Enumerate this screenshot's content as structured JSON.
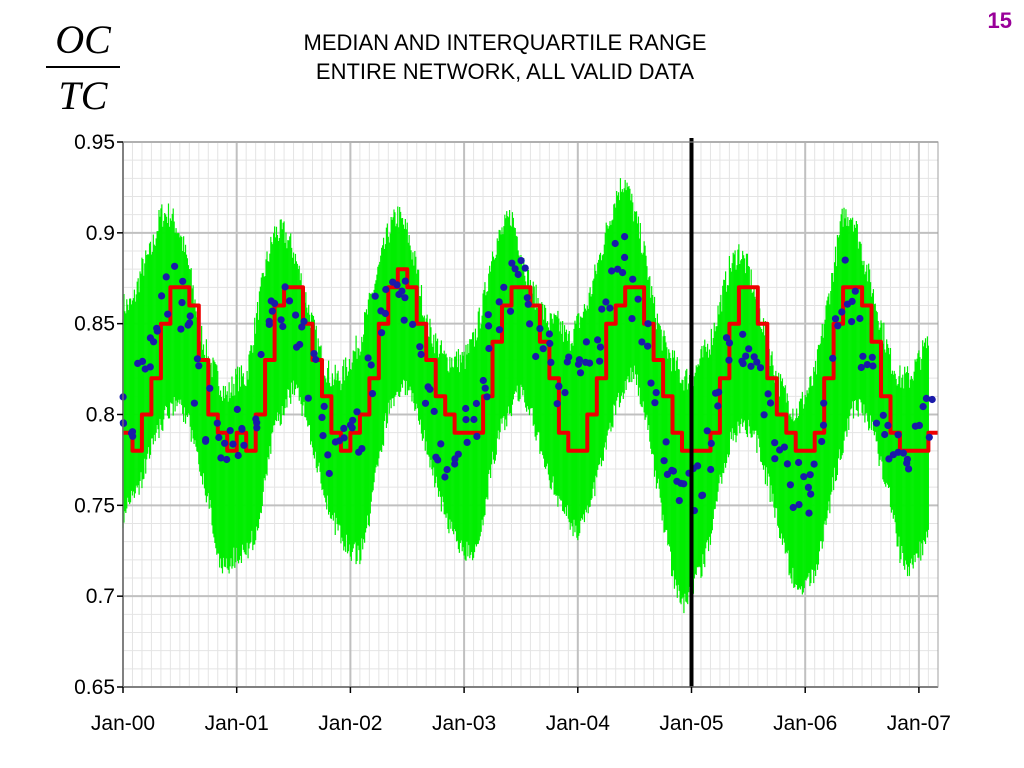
{
  "page_number": "15",
  "ratio_label": {
    "numerator": "OC",
    "denominator": "TC"
  },
  "colors": {
    "iqr_band": "#00ee00",
    "median_line": "#ee0000",
    "points": "#1a1aaa",
    "grid": "#c0c0c0",
    "marker_line": "#000000",
    "page_number": "#990099"
  },
  "chart_data": {
    "type": "line",
    "title": "MEDIAN AND INTERQUARTILE RANGE",
    "subtitle": "ENTIRE NETWORK, ALL VALID DATA",
    "xlabel": "",
    "ylabel": "",
    "ylim": [
      0.65,
      0.95
    ],
    "y_ticks": [
      "0.65",
      "0.7",
      "0.75",
      "0.8",
      "0.85",
      "0.9",
      "0.95"
    ],
    "x_ticks": [
      "Jan-00",
      "Jan-01",
      "Jan-02",
      "Jan-03",
      "Jan-04",
      "Jan-05",
      "Jan-06",
      "Jan-07"
    ],
    "x_range": [
      "2000-01",
      "2007-02"
    ],
    "grid": true,
    "vertical_marker": "2005-01",
    "series": [
      {
        "kind": "interquartile_range_band",
        "x": [
          "2000-01",
          "2000-02",
          "2000-03",
          "2000-04",
          "2000-05",
          "2000-06",
          "2000-07",
          "2000-08",
          "2000-09",
          "2000-10",
          "2000-11",
          "2000-12",
          "2001-01",
          "2001-02",
          "2001-03",
          "2001-04",
          "2001-05",
          "2001-06",
          "2001-07",
          "2001-08",
          "2001-09",
          "2001-10",
          "2001-11",
          "2001-12",
          "2002-01",
          "2002-02",
          "2002-03",
          "2002-04",
          "2002-05",
          "2002-06",
          "2002-07",
          "2002-08",
          "2002-09",
          "2002-10",
          "2002-11",
          "2002-12",
          "2003-01",
          "2003-02",
          "2003-03",
          "2003-04",
          "2003-05",
          "2003-06",
          "2003-07",
          "2003-08",
          "2003-09",
          "2003-10",
          "2003-11",
          "2003-12",
          "2004-01",
          "2004-02",
          "2004-03",
          "2004-04",
          "2004-05",
          "2004-06",
          "2004-07",
          "2004-08",
          "2004-09",
          "2004-10",
          "2004-11",
          "2004-12",
          "2005-01",
          "2005-02",
          "2005-03",
          "2005-04",
          "2005-05",
          "2005-06",
          "2005-07",
          "2005-08",
          "2005-09",
          "2005-10",
          "2005-11",
          "2005-12",
          "2006-01",
          "2006-02",
          "2006-03",
          "2006-04",
          "2006-05",
          "2006-06",
          "2006-07",
          "2006-08",
          "2006-09",
          "2006-10",
          "2006-11",
          "2006-12",
          "2007-01",
          "2007-02"
        ],
        "low": [
          0.75,
          0.76,
          0.77,
          0.79,
          0.8,
          0.81,
          0.81,
          0.8,
          0.78,
          0.76,
          0.73,
          0.72,
          0.73,
          0.73,
          0.74,
          0.77,
          0.8,
          0.81,
          0.82,
          0.81,
          0.79,
          0.77,
          0.75,
          0.74,
          0.73,
          0.73,
          0.75,
          0.78,
          0.81,
          0.82,
          0.82,
          0.81,
          0.79,
          0.77,
          0.75,
          0.74,
          0.73,
          0.73,
          0.75,
          0.78,
          0.8,
          0.81,
          0.82,
          0.81,
          0.79,
          0.77,
          0.76,
          0.75,
          0.74,
          0.75,
          0.77,
          0.79,
          0.81,
          0.82,
          0.83,
          0.81,
          0.78,
          0.75,
          0.72,
          0.7,
          0.71,
          0.72,
          0.74,
          0.77,
          0.79,
          0.8,
          0.8,
          0.79,
          0.77,
          0.75,
          0.73,
          0.71,
          0.71,
          0.72,
          0.74,
          0.77,
          0.79,
          0.81,
          0.81,
          0.8,
          0.78,
          0.76,
          0.73,
          0.72,
          0.73,
          0.74
        ],
        "high": [
          0.86,
          0.86,
          0.88,
          0.89,
          0.91,
          0.91,
          0.9,
          0.88,
          0.85,
          0.83,
          0.82,
          0.81,
          0.82,
          0.82,
          0.85,
          0.88,
          0.9,
          0.9,
          0.89,
          0.87,
          0.85,
          0.83,
          0.82,
          0.82,
          0.83,
          0.84,
          0.86,
          0.88,
          0.9,
          0.91,
          0.9,
          0.88,
          0.85,
          0.84,
          0.83,
          0.83,
          0.83,
          0.84,
          0.86,
          0.89,
          0.9,
          0.91,
          0.89,
          0.87,
          0.86,
          0.85,
          0.85,
          0.84,
          0.85,
          0.86,
          0.88,
          0.9,
          0.92,
          0.93,
          0.91,
          0.89,
          0.86,
          0.84,
          0.83,
          0.82,
          0.82,
          0.83,
          0.84,
          0.86,
          0.88,
          0.89,
          0.88,
          0.86,
          0.84,
          0.82,
          0.81,
          0.8,
          0.81,
          0.82,
          0.85,
          0.88,
          0.91,
          0.91,
          0.89,
          0.87,
          0.85,
          0.83,
          0.82,
          0.82,
          0.83,
          0.84
        ]
      },
      {
        "kind": "median_line",
        "x": [
          "2000-01",
          "2000-02",
          "2000-03",
          "2000-04",
          "2000-05",
          "2000-06",
          "2000-07",
          "2000-08",
          "2000-09",
          "2000-10",
          "2000-11",
          "2000-12",
          "2001-01",
          "2001-02",
          "2001-03",
          "2001-04",
          "2001-05",
          "2001-06",
          "2001-07",
          "2001-08",
          "2001-09",
          "2001-10",
          "2001-11",
          "2001-12",
          "2002-01",
          "2002-02",
          "2002-03",
          "2002-04",
          "2002-05",
          "2002-06",
          "2002-07",
          "2002-08",
          "2002-09",
          "2002-10",
          "2002-11",
          "2002-12",
          "2003-01",
          "2003-02",
          "2003-03",
          "2003-04",
          "2003-05",
          "2003-06",
          "2003-07",
          "2003-08",
          "2003-09",
          "2003-10",
          "2003-11",
          "2003-12",
          "2004-01",
          "2004-02",
          "2004-03",
          "2004-04",
          "2004-05",
          "2004-06",
          "2004-07",
          "2004-08",
          "2004-09",
          "2004-10",
          "2004-11",
          "2004-12",
          "2005-01",
          "2005-02",
          "2005-03",
          "2005-04",
          "2005-05",
          "2005-06",
          "2005-07",
          "2005-08",
          "2005-09",
          "2005-10",
          "2005-11",
          "2005-12",
          "2006-01",
          "2006-02",
          "2006-03",
          "2006-04",
          "2006-05",
          "2006-06",
          "2006-07",
          "2006-08",
          "2006-09",
          "2006-10",
          "2006-11",
          "2006-12",
          "2007-01",
          "2007-02"
        ],
        "y": [
          0.79,
          0.78,
          0.8,
          0.82,
          0.85,
          0.87,
          0.87,
          0.86,
          0.83,
          0.8,
          0.79,
          0.78,
          0.79,
          0.78,
          0.8,
          0.83,
          0.86,
          0.87,
          0.87,
          0.85,
          0.83,
          0.81,
          0.79,
          0.78,
          0.79,
          0.8,
          0.82,
          0.85,
          0.87,
          0.88,
          0.87,
          0.85,
          0.83,
          0.81,
          0.8,
          0.79,
          0.79,
          0.79,
          0.81,
          0.84,
          0.86,
          0.87,
          0.87,
          0.86,
          0.84,
          0.82,
          0.79,
          0.78,
          0.78,
          0.8,
          0.82,
          0.85,
          0.86,
          0.87,
          0.87,
          0.85,
          0.83,
          0.81,
          0.79,
          0.78,
          0.78,
          0.78,
          0.79,
          0.82,
          0.85,
          0.87,
          0.87,
          0.85,
          0.82,
          0.8,
          0.79,
          0.78,
          0.78,
          0.79,
          0.82,
          0.85,
          0.87,
          0.87,
          0.86,
          0.84,
          0.81,
          0.79,
          0.78,
          0.78,
          0.78,
          0.79
        ]
      },
      {
        "kind": "points",
        "x": [
          "2000-01",
          "2000-02",
          "2000-03",
          "2000-04",
          "2000-05",
          "2000-06",
          "2000-07",
          "2000-08",
          "2000-09",
          "2000-10",
          "2000-11",
          "2000-12",
          "2001-01",
          "2001-02",
          "2001-03",
          "2001-04",
          "2001-05",
          "2001-06",
          "2001-07",
          "2001-08",
          "2001-09",
          "2001-10",
          "2001-11",
          "2001-12",
          "2002-01",
          "2002-02",
          "2002-03",
          "2002-04",
          "2002-05",
          "2002-06",
          "2002-07",
          "2002-08",
          "2002-09",
          "2002-10",
          "2002-11",
          "2002-12",
          "2003-01",
          "2003-02",
          "2003-03",
          "2003-04",
          "2003-05",
          "2003-06",
          "2003-07",
          "2003-08",
          "2003-09",
          "2003-10",
          "2003-11",
          "2003-12",
          "2004-01",
          "2004-02",
          "2004-03",
          "2004-04",
          "2004-05",
          "2004-06",
          "2004-07",
          "2004-08",
          "2004-09",
          "2004-10",
          "2004-11",
          "2004-12",
          "2005-01",
          "2005-02",
          "2005-03",
          "2005-04",
          "2005-05",
          "2005-06",
          "2005-07",
          "2005-08",
          "2005-09",
          "2005-10",
          "2005-11",
          "2005-12",
          "2006-01",
          "2006-02",
          "2006-03",
          "2006-04",
          "2006-05",
          "2006-06",
          "2006-07",
          "2006-08",
          "2006-09",
          "2006-10",
          "2006-11",
          "2006-12",
          "2007-01",
          "2007-02"
        ],
        "y": [
          0.81,
          0.8,
          0.82,
          0.83,
          0.86,
          0.87,
          0.86,
          0.85,
          0.82,
          0.8,
          0.79,
          0.78,
          0.79,
          0.78,
          0.8,
          0.84,
          0.86,
          0.86,
          0.85,
          0.84,
          0.82,
          0.8,
          0.78,
          0.78,
          0.79,
          0.79,
          0.82,
          0.86,
          0.87,
          0.88,
          0.86,
          0.84,
          0.81,
          0.79,
          0.77,
          0.77,
          0.79,
          0.8,
          0.82,
          0.85,
          0.86,
          0.87,
          0.87,
          0.85,
          0.84,
          0.83,
          0.82,
          0.82,
          0.83,
          0.84,
          0.84,
          0.86,
          0.88,
          0.89,
          0.86,
          0.84,
          0.81,
          0.78,
          0.76,
          0.75,
          0.76,
          0.77,
          0.78,
          0.81,
          0.83,
          0.84,
          0.83,
          0.82,
          0.8,
          0.78,
          0.77,
          0.76,
          0.76,
          0.77,
          0.8,
          0.84,
          0.87,
          0.86,
          0.84,
          0.82,
          0.8,
          0.79,
          0.78,
          0.78,
          0.79,
          0.8
        ]
      }
    ]
  }
}
